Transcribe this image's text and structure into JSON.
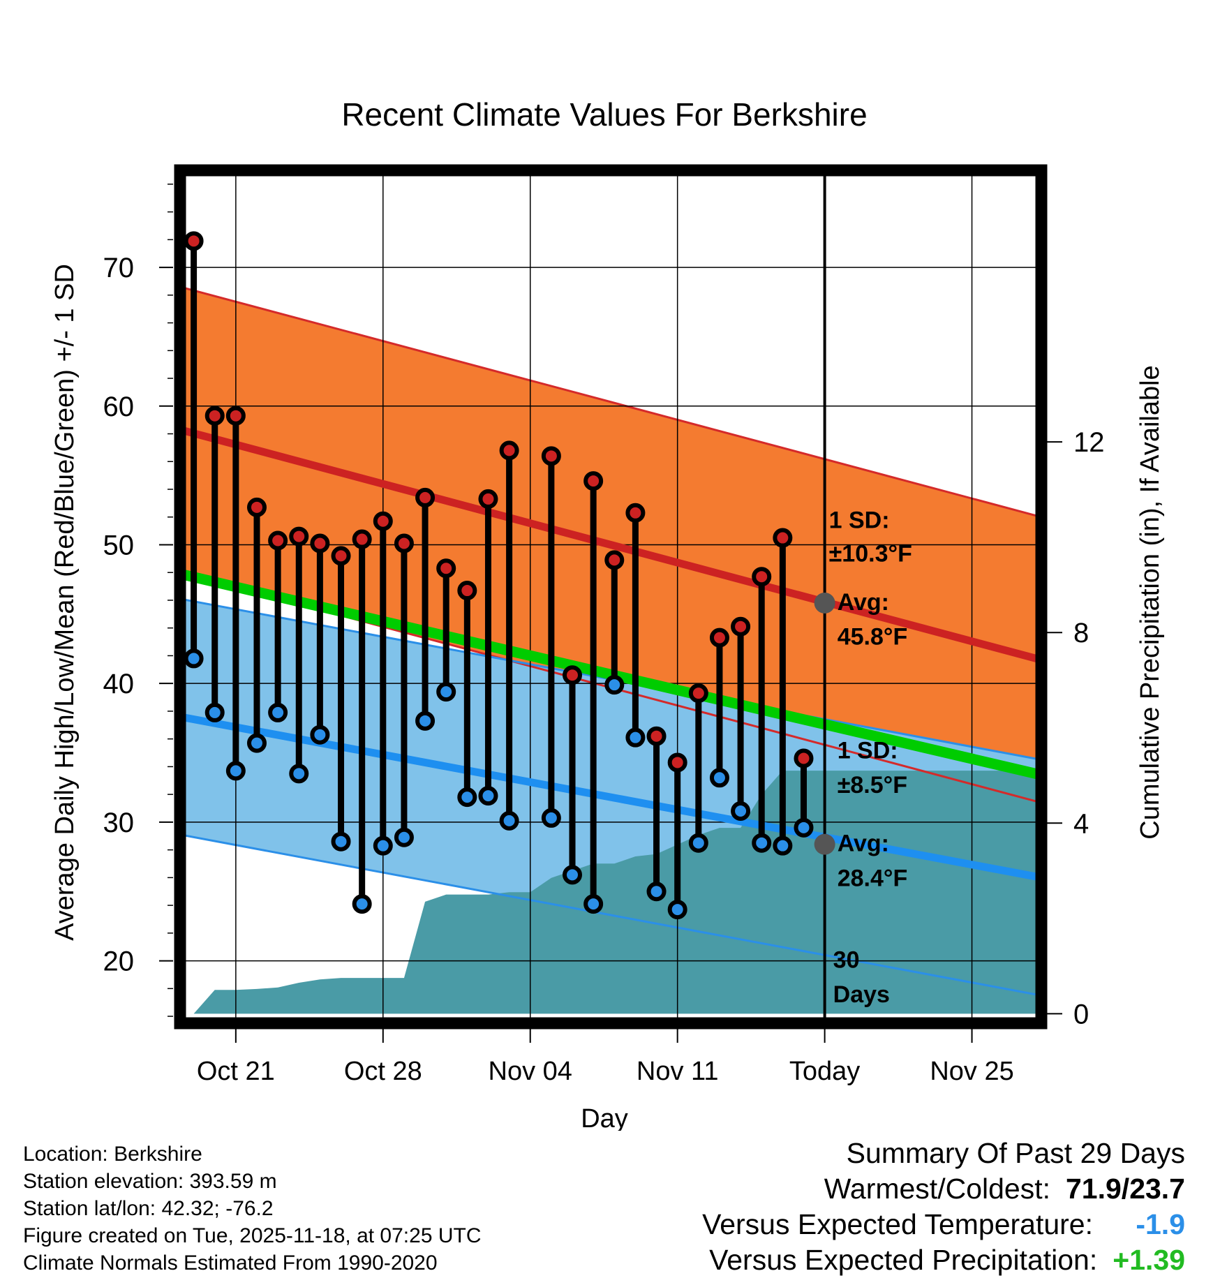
{
  "chart_data": {
    "type": "line",
    "title": "Recent Climate Values For Berkshire",
    "xlabel": "Day",
    "ylabel": "Average Daily High/Low/Mean (Red/Blue/Green) +/- 1 SD",
    "y2label": "Cumulative Precipitation (in), If Available",
    "ylim": [
      15.5,
      77
    ],
    "y2lim": [
      -0.2,
      17.7
    ],
    "yticks": [
      "20",
      "30",
      "40",
      "50",
      "60",
      "70"
    ],
    "y2ticks": [
      "0",
      "4",
      "8",
      "12"
    ],
    "xlim": [
      -0.65,
      40.3
    ],
    "xticks": [
      {
        "day": 2,
        "label": "Oct 21"
      },
      {
        "day": 9,
        "label": "Oct 28"
      },
      {
        "day": 16,
        "label": "Nov 04"
      },
      {
        "day": 23,
        "label": "Nov 11"
      },
      {
        "day": 30,
        "label": "Today"
      },
      {
        "day": 37,
        "label": "Nov 25"
      }
    ],
    "today_day": 30,
    "normals": {
      "day_range": [
        -0.65,
        40.3
      ],
      "high_avg": [
        58.3,
        41.7
      ],
      "high_sd": 10.3,
      "low_avg": [
        37.6,
        26.0
      ],
      "low_sd": 8.5,
      "mean_avg": [
        47.9,
        33.4
      ]
    },
    "series": [
      {
        "name": "High",
        "color": "#cc2222",
        "values": [
          71.9,
          59.3,
          59.3,
          52.7,
          50.3,
          50.6,
          50.1,
          49.2,
          50.4,
          51.7,
          50.1,
          53.4,
          48.3,
          46.7,
          53.3,
          56.8,
          null,
          56.4,
          40.6,
          54.6,
          48.9,
          52.3,
          36.2,
          34.3,
          39.3,
          43.3,
          44.1,
          47.7,
          50.5,
          34.6
        ]
      },
      {
        "name": "Low",
        "color": "#2b8fe8",
        "values": [
          41.8,
          37.9,
          33.7,
          35.7,
          37.9,
          33.5,
          36.3,
          28.6,
          24.1,
          28.3,
          28.9,
          37.3,
          39.4,
          31.8,
          31.9,
          30.1,
          null,
          30.3,
          26.2,
          24.1,
          39.9,
          36.1,
          25.0,
          23.7,
          28.5,
          33.2,
          30.8,
          28.5,
          28.3,
          29.6
        ]
      }
    ],
    "precip_cumulative": {
      "days": [
        0,
        1,
        2,
        3,
        4,
        5,
        6,
        7,
        8,
        9,
        10,
        11,
        12,
        13,
        14,
        15,
        16,
        17,
        18,
        19,
        20,
        21,
        22,
        23,
        24,
        25,
        26,
        27,
        28,
        29,
        40.3
      ],
      "values": [
        0,
        0.5,
        0.5,
        0.52,
        0.55,
        0.65,
        0.72,
        0.75,
        0.75,
        0.75,
        0.75,
        2.35,
        2.5,
        2.5,
        2.5,
        2.55,
        2.55,
        2.85,
        3.0,
        3.15,
        3.15,
        3.3,
        3.35,
        3.55,
        3.75,
        3.9,
        3.9,
        4.6,
        5.1,
        5.1,
        5.1
      ]
    },
    "annotations": [
      {
        "text": "1 SD:",
        "day": 30.2,
        "y": 51.2
      },
      {
        "text": "±10.3°F",
        "day": 30.2,
        "y": 48.8
      },
      {
        "text": "Avg:",
        "day": 30.6,
        "y": 45.3
      },
      {
        "text": "45.8°F",
        "day": 30.6,
        "y": 42.8
      },
      {
        "text": "1 SD:",
        "day": 30.6,
        "y": 34.6
      },
      {
        "text": "±8.5°F",
        "day": 30.6,
        "y": 32.1
      },
      {
        "text": "Avg:",
        "day": 30.6,
        "y": 27.9
      },
      {
        "text": "28.4°F",
        "day": 30.6,
        "y": 25.4
      },
      {
        "text": "30",
        "day": 30.4,
        "y": 19.5
      },
      {
        "text": "Days",
        "day": 30.4,
        "y": 17.0
      }
    ],
    "avg_markers": [
      {
        "name": "high-avg-today",
        "day": 30,
        "y": 45.8
      },
      {
        "name": "low-avg-today",
        "day": 30,
        "y": 28.4
      }
    ]
  },
  "info": {
    "location": "Location: Berkshire",
    "elevation": "Station elevation: 393.59 m",
    "latlon": "Station lat/lon: 42.32; -76.2",
    "created": "Figure created on Tue, 2025-11-18, at 07:25 UTC",
    "normals": "Climate Normals Estimated From 1990-2020"
  },
  "summary": {
    "title": "Summary Of Past 29 Days",
    "warmest_label": "Warmest/Coldest:",
    "warmest_value": "71.9/23.7",
    "temp_label": "Versus Expected Temperature:",
    "temp_value": "-1.9",
    "temp_color": "#2b8fe8",
    "precip_label": "Versus Expected Precipitation:",
    "precip_value": "+1.39",
    "precip_color": "#22bb22"
  }
}
